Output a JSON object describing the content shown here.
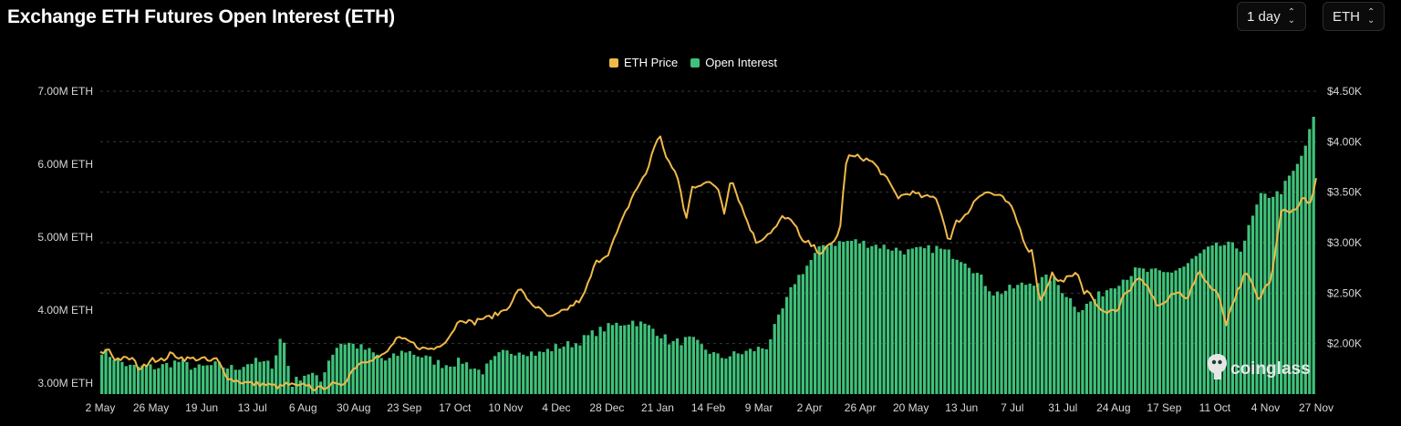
{
  "title": "Exchange ETH Futures Open Interest (ETH)",
  "controls": {
    "interval": "1 day",
    "unit": "ETH"
  },
  "legend": [
    {
      "label": "ETH Price",
      "color": "#f0b94a"
    },
    {
      "label": "Open Interest",
      "color": "#3fc17a"
    }
  ],
  "watermark": "coinglass",
  "chart_data": {
    "type": "bar+line",
    "x_labels": [
      "2 May",
      "26 May",
      "19 Jun",
      "13 Jul",
      "6 Aug",
      "30 Aug",
      "23 Sep",
      "17 Oct",
      "10 Nov",
      "4 Dec",
      "28 Dec",
      "21 Jan",
      "14 Feb",
      "9 Mar",
      "2 Apr",
      "26 Apr",
      "20 May",
      "13 Jun",
      "7 Jul",
      "31 Jul",
      "24 Aug",
      "17 Sep",
      "11 Oct",
      "4 Nov",
      "27 Nov"
    ],
    "left_axis": {
      "label_ticks": [
        "7.00M ETH",
        "6.00M ETH",
        "5.00M ETH",
        "4.00M ETH",
        "3.00M ETH"
      ],
      "tick_values": [
        7.0,
        6.0,
        5.0,
        4.0,
        3.0
      ],
      "range": [
        2.85,
        7.0
      ],
      "unit": "M ETH"
    },
    "right_axis": {
      "label_ticks": [
        "$4.50K",
        "$4.00K",
        "$3.50K",
        "$3.00K",
        "$2.50K",
        "$2.00K"
      ],
      "tick_values": [
        4.5,
        4.0,
        3.5,
        3.0,
        2.5,
        2.0
      ],
      "range": [
        1.5,
        4.5
      ],
      "unit": "$K"
    },
    "series": [
      {
        "name": "Open Interest",
        "axis": "left",
        "style": "bars",
        "anchors": [
          [
            0,
            3.45
          ],
          [
            3,
            3.22
          ],
          [
            6,
            3.22
          ],
          [
            8,
            3.3
          ],
          [
            10,
            3.2
          ],
          [
            12,
            3.25
          ],
          [
            14,
            3.2
          ],
          [
            16,
            3.3
          ],
          [
            18,
            3.25
          ],
          [
            19,
            3.7
          ],
          [
            20,
            2.98
          ],
          [
            21,
            3.1
          ],
          [
            22,
            3.15
          ],
          [
            23,
            3.0
          ],
          [
            23.5,
            3.2
          ],
          [
            24,
            3.35
          ],
          [
            25,
            3.55
          ],
          [
            26,
            3.55
          ],
          [
            28,
            3.45
          ],
          [
            30,
            3.3
          ],
          [
            32,
            3.45
          ],
          [
            34,
            3.35
          ],
          [
            36,
            3.25
          ],
          [
            38,
            3.3
          ],
          [
            40,
            3.15
          ],
          [
            42,
            3.4
          ],
          [
            44,
            3.45
          ],
          [
            46,
            3.4
          ],
          [
            48,
            3.5
          ],
          [
            50,
            3.55
          ],
          [
            52,
            3.7
          ],
          [
            54,
            3.8
          ],
          [
            56,
            3.85
          ],
          [
            58,
            3.75
          ],
          [
            60,
            3.55
          ],
          [
            62,
            3.6
          ],
          [
            65,
            3.35
          ],
          [
            67,
            3.4
          ],
          [
            70,
            3.5
          ],
          [
            73,
            4.4
          ],
          [
            76,
            4.9
          ],
          [
            79,
            4.95
          ],
          [
            82,
            4.88
          ],
          [
            85,
            4.8
          ],
          [
            88,
            4.85
          ],
          [
            91,
            4.68
          ],
          [
            94,
            4.22
          ],
          [
            97,
            4.35
          ],
          [
            100,
            4.45
          ],
          [
            103,
            4.0
          ],
          [
            106,
            4.3
          ],
          [
            109,
            4.55
          ],
          [
            112,
            4.5
          ],
          [
            114,
            4.6
          ],
          [
            116,
            4.8
          ],
          [
            118,
            4.9
          ],
          [
            120,
            4.85
          ],
          [
            122,
            5.55
          ],
          [
            124,
            5.6
          ],
          [
            126,
            6.0
          ],
          [
            127,
            6.35
          ],
          [
            127.6,
            6.65
          ]
        ]
      },
      {
        "name": "ETH Price",
        "axis": "right",
        "style": "line",
        "anchors": [
          [
            0,
            1.9
          ],
          [
            1.5,
            1.95
          ],
          [
            2,
            1.85
          ],
          [
            3,
            1.85
          ],
          [
            5,
            1.85
          ],
          [
            6,
            1.75
          ],
          [
            7,
            1.78
          ],
          [
            8,
            1.87
          ],
          [
            9,
            1.82
          ],
          [
            10,
            1.85
          ],
          [
            11,
            1.9
          ],
          [
            13,
            1.85
          ],
          [
            14,
            1.85
          ],
          [
            15,
            1.85
          ],
          [
            16,
            1.85
          ],
          [
            17,
            1.82
          ],
          [
            18,
            1.85
          ],
          [
            19,
            1.75
          ],
          [
            20,
            1.65
          ],
          [
            22,
            1.62
          ],
          [
            24,
            1.6
          ],
          [
            25,
            1.6
          ],
          [
            27,
            1.58
          ],
          [
            28,
            1.57
          ],
          [
            29,
            1.6
          ],
          [
            31,
            1.57
          ],
          [
            32,
            1.6
          ],
          [
            33,
            1.56
          ],
          [
            34,
            1.55
          ],
          [
            36,
            1.6
          ],
          [
            37,
            1.58
          ],
          [
            38,
            1.62
          ],
          [
            39,
            1.72
          ],
          [
            40,
            1.8
          ],
          [
            42,
            1.85
          ],
          [
            44,
            1.88
          ],
          [
            45,
            1.95
          ],
          [
            46,
            2.05
          ],
          [
            48,
            2.02
          ],
          [
            50,
            1.95
          ],
          [
            52,
            1.95
          ],
          [
            54,
            2.05
          ],
          [
            56,
            2.25
          ],
          [
            58,
            2.2
          ],
          [
            59,
            2.25
          ],
          [
            60,
            2.25
          ],
          [
            62,
            2.3
          ],
          [
            64,
            2.4
          ],
          [
            65,
            2.55
          ],
          [
            67,
            2.4
          ],
          [
            70,
            2.25
          ],
          [
            72,
            2.32
          ],
          [
            75,
            2.45
          ],
          [
            77,
            2.8
          ],
          [
            79,
            2.9
          ],
          [
            81,
            3.2
          ],
          [
            83,
            3.5
          ],
          [
            85,
            3.7
          ],
          [
            86,
            3.95
          ],
          [
            87,
            4.05
          ],
          [
            88,
            3.85
          ],
          [
            90,
            3.6
          ],
          [
            91,
            3.2
          ],
          [
            92,
            3.55
          ],
          [
            94,
            3.6
          ],
          [
            96,
            3.55
          ],
          [
            97,
            3.3
          ],
          [
            98,
            3.65
          ],
          [
            100,
            3.3
          ],
          [
            102,
            3.0
          ],
          [
            105,
            3.15
          ],
          [
            106,
            3.25
          ],
          [
            108,
            3.2
          ],
          [
            109,
            3.0
          ],
          [
            110,
            3.0
          ],
          [
            112,
            2.9
          ],
          [
            113,
            2.95
          ],
          [
            114,
            3.0
          ],
          [
            115,
            3.15
          ],
          [
            116,
            3.85
          ],
          [
            117,
            3.85
          ],
          [
            118,
            3.85
          ],
          [
            120,
            3.8
          ],
          [
            122,
            3.65
          ],
          [
            123,
            3.55
          ],
          [
            124,
            3.45
          ],
          [
            126,
            3.5
          ],
          [
            128,
            3.45
          ],
          [
            130,
            3.45
          ],
          [
            132,
            3.0
          ],
          [
            133,
            3.2
          ],
          [
            135,
            3.3
          ],
          [
            136,
            3.45
          ],
          [
            138,
            3.5
          ],
          [
            140,
            3.45
          ],
          [
            141,
            3.4
          ],
          [
            142,
            3.3
          ],
          [
            144,
            2.95
          ],
          [
            145,
            2.9
          ],
          [
            146,
            2.4
          ],
          [
            147,
            2.55
          ],
          [
            148,
            2.7
          ],
          [
            149,
            2.6
          ],
          [
            150,
            2.65
          ],
          [
            151,
            2.65
          ],
          [
            152,
            2.7
          ],
          [
            153,
            2.5
          ],
          [
            154,
            2.5
          ],
          [
            155,
            2.35
          ],
          [
            156,
            2.3
          ],
          [
            157,
            2.35
          ],
          [
            158,
            2.3
          ],
          [
            159,
            2.5
          ],
          [
            160,
            2.5
          ],
          [
            161,
            2.65
          ],
          [
            162,
            2.6
          ],
          [
            163,
            2.55
          ],
          [
            164,
            2.4
          ],
          [
            165,
            2.38
          ],
          [
            167,
            2.5
          ],
          [
            168,
            2.5
          ],
          [
            169,
            2.45
          ],
          [
            170,
            2.6
          ],
          [
            171,
            2.72
          ],
          [
            172,
            2.6
          ],
          [
            173,
            2.55
          ],
          [
            174,
            2.45
          ],
          [
            175,
            2.2
          ],
          [
            176,
            2.4
          ],
          [
            177,
            2.55
          ],
          [
            178,
            2.7
          ],
          [
            179,
            2.6
          ],
          [
            180,
            2.42
          ],
          [
            181,
            2.55
          ],
          [
            182,
            2.65
          ],
          [
            183,
            3.1
          ],
          [
            183.5,
            3.3
          ],
          [
            184,
            3.35
          ],
          [
            185,
            3.3
          ],
          [
            186,
            3.35
          ],
          [
            187,
            3.45
          ],
          [
            188,
            3.35
          ],
          [
            189,
            3.65
          ]
        ]
      }
    ]
  }
}
